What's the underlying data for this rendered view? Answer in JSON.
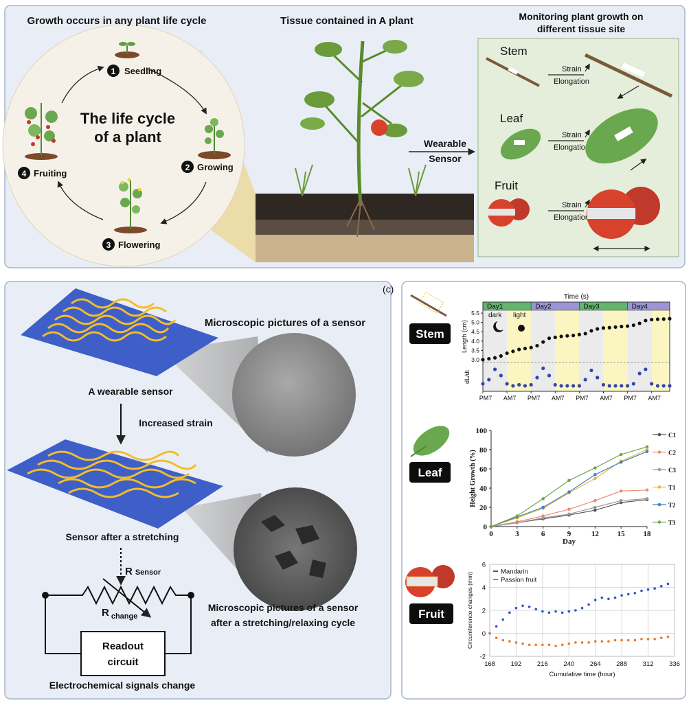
{
  "top": {
    "cycle_title": "Growth  occurs in  any plant life cycle",
    "cycle_center": [
      "The life cycle",
      "of a plant"
    ],
    "stages": [
      {
        "number": "1",
        "label": "Seedling"
      },
      {
        "number": "2",
        "label": "Growing"
      },
      {
        "number": "3",
        "label": "Flowering"
      },
      {
        "number": "4",
        "label": "Fruiting"
      }
    ],
    "plant_title": "Tissue contained in A plant",
    "sensor_label": [
      "Wearable",
      "Sensor"
    ],
    "monitor_title": [
      "Monitoring  plant growth on",
      "different tissue site"
    ],
    "tissues": [
      {
        "name": "Stem",
        "strain": "Strain",
        "elongation": "Elongation"
      },
      {
        "name": "Leaf",
        "strain": "Strain",
        "elongation": "Elongation"
      },
      {
        "name": "Fruit",
        "strain": "Strain",
        "elongation": "Elongation"
      }
    ]
  },
  "sensor": {
    "micro_title_1": "Microscopic pictures of a sensor",
    "wearable": "A wearable sensor",
    "increased": "Increased strain",
    "after": "Sensor after a stretching",
    "r_sensor": [
      "R",
      "Sensor"
    ],
    "r_change": [
      "R",
      "change"
    ],
    "micro_title_2": [
      "Microscopic pictures of a sensor",
      "after a stretching/relaxing cycle"
    ],
    "readout": [
      "Readout",
      "circuit"
    ],
    "signals": "Electrochemical signals change"
  },
  "panel_c": {
    "label": "(c)",
    "tissues": [
      "Stem",
      "Leaf",
      "Fruit"
    ]
  },
  "chart_data": [
    {
      "type": "timeseries",
      "title": "Time (s)",
      "days": [
        "Day1",
        "Day2",
        "Day3",
        "Day4"
      ],
      "day_starts": [
        0,
        24,
        48,
        72
      ],
      "day_colors": [
        "#62b56c",
        "#9d94d4",
        "#62b56c",
        "#9d94d4"
      ],
      "light_periods": [
        [
          12,
          24
        ],
        [
          36,
          48
        ],
        [
          60,
          72
        ],
        [
          84,
          93
        ]
      ],
      "band_colors": {
        "dark": "#ebebeb",
        "light": "#fbf5c2"
      },
      "annotations": [
        "dark",
        "light"
      ],
      "ylabel": "Length (cm)",
      "y2label": "dL/dt",
      "x": [
        0,
        3,
        6,
        9,
        12,
        15,
        18,
        21,
        24,
        27,
        30,
        33,
        36,
        39,
        42,
        45,
        48,
        51,
        54,
        57,
        60,
        63,
        66,
        69,
        72,
        75,
        78,
        81,
        84,
        87,
        90,
        93
      ],
      "series": [
        {
          "color": "#111111",
          "values": [
            3.0,
            3.05,
            3.1,
            3.2,
            3.35,
            3.45,
            3.55,
            3.6,
            3.65,
            3.75,
            3.95,
            4.15,
            4.2,
            4.25,
            4.28,
            4.3,
            4.35,
            4.4,
            4.55,
            4.65,
            4.7,
            4.72,
            4.75,
            4.78,
            4.8,
            4.85,
            4.95,
            5.1,
            5.15,
            5.17,
            5.18,
            5.2
          ]
        },
        {
          "color": "#3347a8",
          "axis": "y2",
          "values": [
            0.2,
            0.4,
            0.9,
            0.6,
            0.2,
            0.1,
            0.15,
            0.1,
            0.15,
            0.5,
            0.95,
            0.6,
            0.15,
            0.1,
            0.1,
            0.1,
            0.1,
            0.4,
            0.85,
            0.5,
            0.15,
            0.1,
            0.1,
            0.1,
            0.1,
            0.2,
            0.7,
            0.9,
            0.2,
            0.1,
            0.1,
            0.1
          ]
        }
      ],
      "xlim": [
        0,
        93
      ],
      "xticks": [
        {
          "value": 0,
          "label": "PM7"
        },
        {
          "value": 12,
          "label": "AM7"
        },
        {
          "value": 24,
          "label": "PM7"
        },
        {
          "value": 36,
          "label": "AM7"
        },
        {
          "value": 48,
          "label": "PM7"
        },
        {
          "value": 60,
          "label": "AM7"
        },
        {
          "value": 72,
          "label": "PM7"
        },
        {
          "value": 84,
          "label": "AM7"
        }
      ],
      "ylim": [
        2.85,
        5.65
      ],
      "yticks": [
        {
          "value": 3,
          "label": "3.0"
        },
        3.5,
        {
          "value": 4,
          "label": "4.0"
        },
        4.5,
        {
          "value": 5,
          "label": "5.0"
        },
        5.5
      ],
      "y2lim": [
        0,
        1
      ]
    },
    {
      "type": "line",
      "xlabel": "Day",
      "ylabel": "Height Growth (%)",
      "x": [
        0,
        3,
        6,
        9,
        12,
        15,
        18
      ],
      "series": [
        {
          "name": "C1",
          "color": "#555555",
          "values": [
            0,
            4,
            8,
            12,
            17,
            25,
            28
          ]
        },
        {
          "name": "C2",
          "color": "#f08a6b",
          "values": [
            0,
            5,
            11,
            18,
            27,
            37,
            38
          ]
        },
        {
          "name": "C3",
          "color": "#9a9a9a",
          "values": [
            0,
            4,
            9,
            13,
            20,
            27,
            29
          ]
        },
        {
          "name": "T1",
          "color": "#f2b53c",
          "values": [
            0,
            9,
            19,
            35,
            50,
            68,
            80
          ]
        },
        {
          "name": "T2",
          "color": "#3b82c4",
          "values": [
            0,
            10,
            20,
            36,
            54,
            67,
            78
          ]
        },
        {
          "name": "T3",
          "color": "#6aa84f",
          "values": [
            0,
            11,
            29,
            48,
            61,
            75,
            83
          ]
        }
      ],
      "xlim": [
        0,
        18
      ],
      "xticks": [
        0,
        3,
        6,
        9,
        12,
        15,
        18
      ],
      "ylim": [
        0,
        100
      ],
      "yticks": [
        0,
        20,
        40,
        60,
        80,
        100
      ],
      "legend": "right"
    },
    {
      "type": "scatter",
      "xlabel": "Cumulative time (hour)",
      "ylabel": "Circumference changes (mm)",
      "x": [
        168,
        174,
        180,
        186,
        192,
        198,
        204,
        210,
        216,
        222,
        228,
        234,
        240,
        246,
        252,
        258,
        264,
        270,
        276,
        282,
        288,
        294,
        300,
        306,
        312,
        318,
        324,
        330
      ],
      "series": [
        {
          "name": "Mandarin",
          "color": "#2f55c8",
          "values": [
            0,
            0.6,
            1.2,
            1.8,
            2.2,
            2.4,
            2.3,
            2.1,
            1.9,
            1.8,
            1.9,
            1.8,
            1.9,
            2.0,
            2.2,
            2.5,
            2.9,
            3.1,
            3.0,
            3.1,
            3.3,
            3.4,
            3.5,
            3.7,
            3.8,
            3.9,
            4.1,
            4.3
          ]
        },
        {
          "name": "Passion fruit",
          "color": "#e8792d",
          "values": [
            0,
            -0.4,
            -0.6,
            -0.7,
            -0.8,
            -0.9,
            -1.0,
            -1.0,
            -1.0,
            -1.0,
            -1.1,
            -1.0,
            -0.9,
            -0.8,
            -0.8,
            -0.8,
            -0.7,
            -0.7,
            -0.7,
            -0.6,
            -0.6,
            -0.6,
            -0.6,
            -0.5,
            -0.5,
            -0.5,
            -0.4,
            -0.3
          ]
        }
      ],
      "xlim": [
        168,
        336
      ],
      "xticks": [
        168,
        192,
        216,
        240,
        264,
        288,
        312,
        336
      ],
      "ylim": [
        -2,
        6
      ],
      "yticks": [
        -2,
        0,
        2,
        4,
        6
      ],
      "grid": true,
      "legend": "upper left"
    }
  ]
}
